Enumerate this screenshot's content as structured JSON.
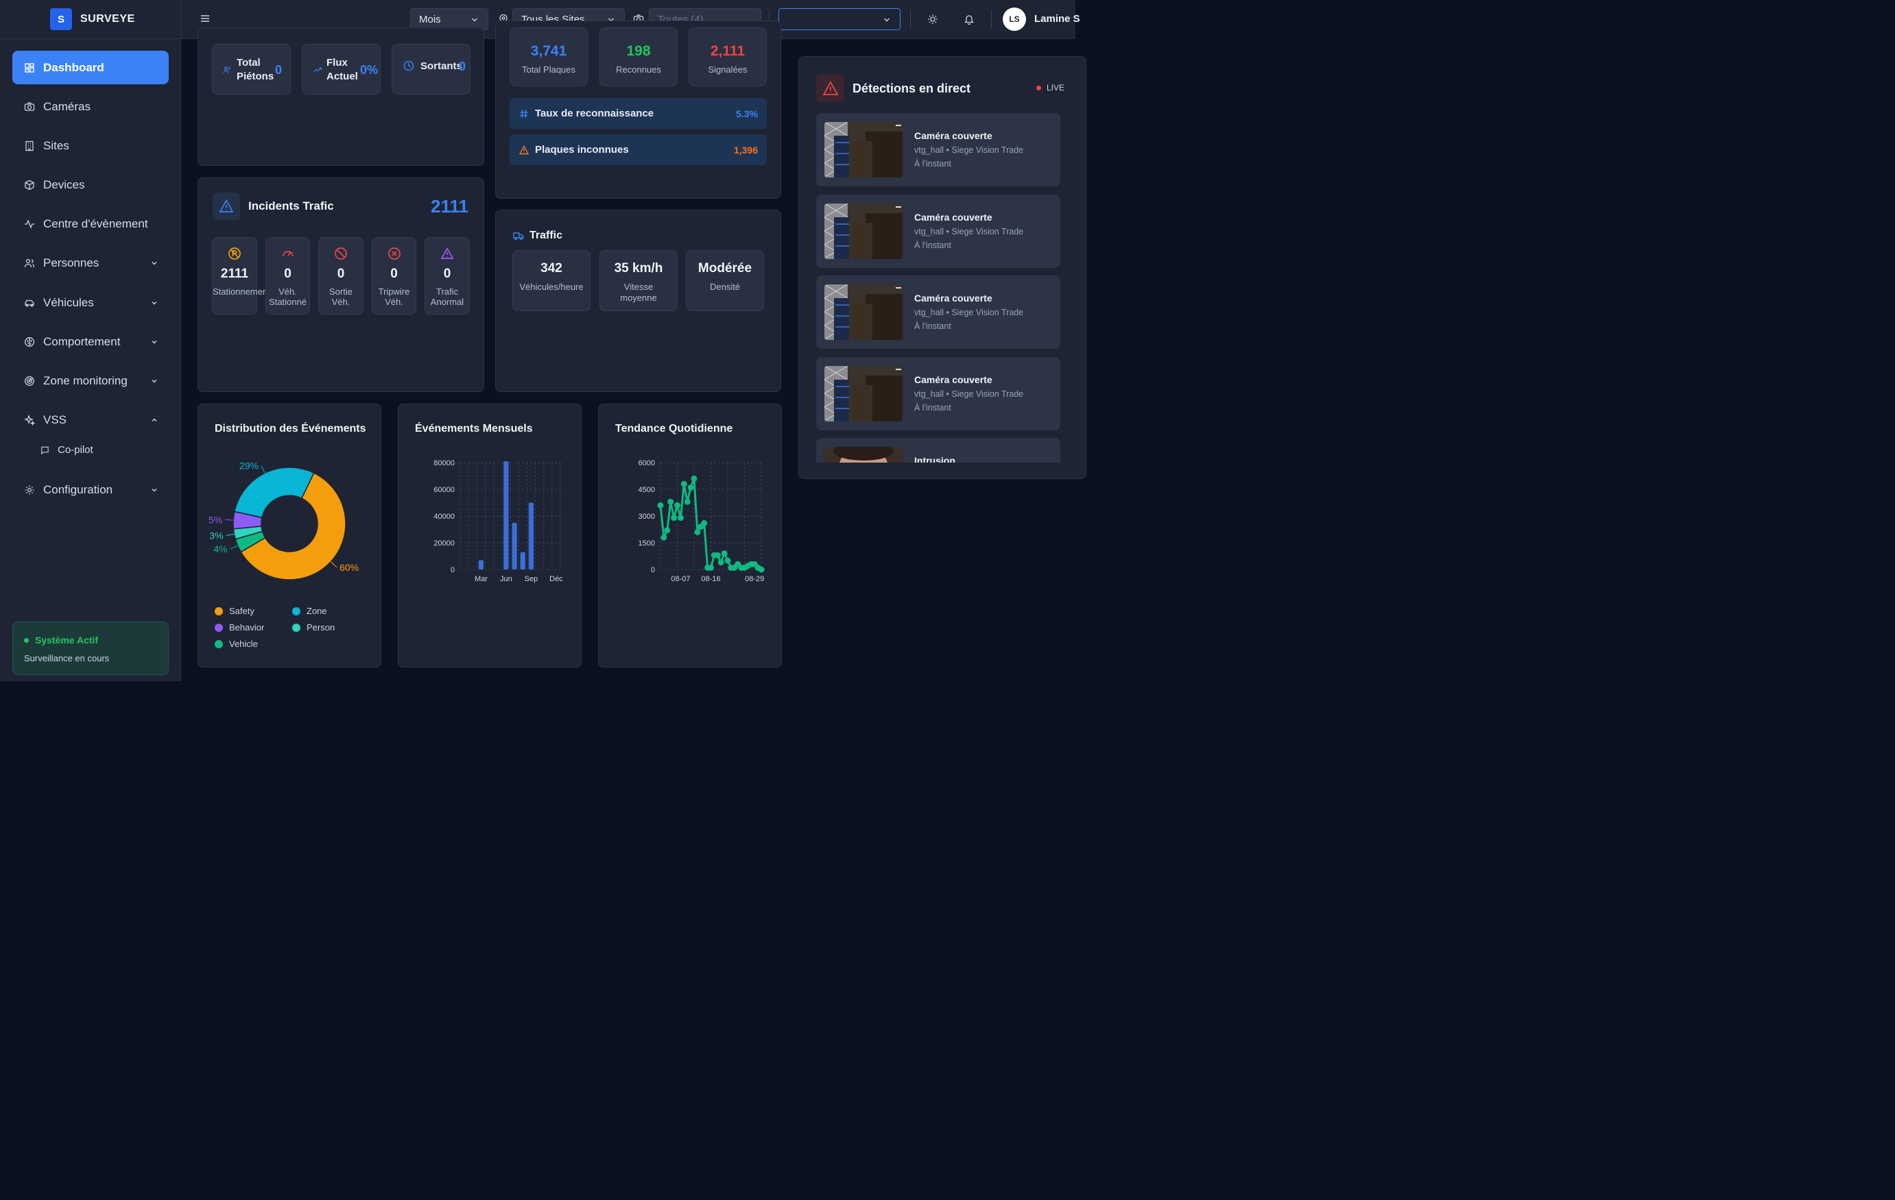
{
  "brand": {
    "logo_letter": "S",
    "name": "SURVEYE"
  },
  "sidebar": {
    "items": [
      {
        "label": "Dashboard",
        "icon": "dashboard-icon",
        "active": true
      },
      {
        "label": "Caméras",
        "icon": "camera-icon"
      },
      {
        "label": "Sites",
        "icon": "building-icon"
      },
      {
        "label": "Devices",
        "icon": "box-icon"
      },
      {
        "label": "Centre d'évènement",
        "icon": "activity-icon"
      },
      {
        "label": "Personnes",
        "icon": "users-icon",
        "chevron": "down"
      },
      {
        "label": "Véhicules",
        "icon": "car-icon",
        "chevron": "down"
      },
      {
        "label": "Comportement",
        "icon": "brain-icon",
        "chevron": "down"
      },
      {
        "label": "Zone monitoring",
        "icon": "radar-icon",
        "chevron": "down"
      },
      {
        "label": "VSS",
        "icon": "sparkles-icon",
        "chevron": "up"
      }
    ],
    "sub_item": {
      "label": "Co-pilot",
      "icon": "message-icon"
    },
    "config_item": {
      "label": "Configuration",
      "icon": "gear-icon",
      "chevron": "down"
    },
    "status": {
      "title": "Système Actif",
      "subtitle": "Surveillance en cours"
    }
  },
  "header": {
    "period": "Mois",
    "site": "Tous les Sites",
    "cameras_placeholder": "Toutes (4)",
    "extra_select": "",
    "user_initials": "LS",
    "user_name": "Lamine S"
  },
  "pedestrians": {
    "total_label_1": "Total",
    "total_label_2": "Piétons",
    "total_value": "0",
    "flux_label_1": "Flux",
    "flux_label_2": "Actuel",
    "flux_value": "0%",
    "exits_label": "Sortants",
    "exits_value": "0"
  },
  "plates": {
    "total": {
      "value": "3,741",
      "label": "Total Plaques",
      "color": "#3b82f6"
    },
    "recognized": {
      "value": "198",
      "label": "Reconnues",
      "color": "#22c55e"
    },
    "flagged": {
      "value": "2,111",
      "label": "Signalées",
      "color": "#ef4444"
    },
    "rate_label": "Taux de reconnaissance",
    "rate_value": "5.3%",
    "unknown_label": "Plaques inconnues",
    "unknown_value": "1,396"
  },
  "incidents": {
    "title": "Incidents Trafic",
    "total": "2111",
    "items": [
      {
        "value": "2111",
        "label1": "Stationnement",
        "label2": "",
        "color": "#f59e0b",
        "icon": "no-parking-icon"
      },
      {
        "value": "0",
        "label1": "Véh.",
        "label2": "Stationné",
        "color": "#ef4444",
        "icon": "gauge-icon"
      },
      {
        "value": "0",
        "label1": "Sortie",
        "label2": "Véh.",
        "color": "#ef4444",
        "icon": "ban-icon"
      },
      {
        "value": "0",
        "label1": "Tripwire",
        "label2": "Véh.",
        "color": "#ef4444",
        "icon": "x-circle-icon"
      },
      {
        "value": "0",
        "label1": "Trafic",
        "label2": "Anormal",
        "color": "#a855f7",
        "icon": "warning-icon"
      }
    ]
  },
  "traffic": {
    "title": "Traffic",
    "items": [
      {
        "value": "342",
        "label1": "Véhicules/heure",
        "label2": ""
      },
      {
        "value": "35 km/h",
        "label1": "Vitesse",
        "label2": "moyenne"
      },
      {
        "value": "Modérée",
        "label1": "Densité",
        "label2": ""
      }
    ]
  },
  "charts": {
    "distribution_title": "Distribution des Événements",
    "monthly_title": "Événements Mensuels",
    "daily_title": "Tendance Quotidienne"
  },
  "chart_data": [
    {
      "type": "pie",
      "title": "Distribution des Événements",
      "categories": [
        "Safety",
        "Zone",
        "Behavior",
        "Person",
        "Vehicle"
      ],
      "values": [
        60,
        29,
        5,
        3,
        4
      ],
      "visible_labels": [
        "60%",
        "29%",
        "5%",
        "3%",
        "4%"
      ],
      "colors": [
        "#f59e0b",
        "#06b6d4",
        "#8b5cf6",
        "#2dd4bf",
        "#10b981"
      ],
      "legend": "bottom"
    },
    {
      "type": "bar",
      "title": "Événements Mensuels",
      "categories": [
        "Jan",
        "Feb",
        "Mar",
        "Apr",
        "May",
        "Jun",
        "Jul",
        "Aug",
        "Sep",
        "Oct",
        "Nov",
        "Déc"
      ],
      "tick_labels": [
        "Mar",
        "Jun",
        "Sep",
        "Déc"
      ],
      "values": [
        0,
        0,
        7000,
        0,
        0,
        81000,
        35000,
        13000,
        50000,
        0,
        0,
        0
      ],
      "ylim": [
        0,
        80000
      ],
      "yticks": [
        0,
        20000,
        40000,
        60000,
        80000
      ],
      "color": "#3b6fd6",
      "grid": true
    },
    {
      "type": "line",
      "title": "Tendance Quotidienne",
      "x": [
        "08-01",
        "08-02",
        "08-03",
        "08-04",
        "08-05",
        "08-06",
        "08-07",
        "08-08",
        "08-09",
        "08-10",
        "08-11",
        "08-12",
        "08-13",
        "08-14",
        "08-15",
        "08-16",
        "08-17",
        "08-18",
        "08-19",
        "08-20",
        "08-21",
        "08-22",
        "08-23",
        "08-24",
        "08-25",
        "08-26",
        "08-27",
        "08-28",
        "08-29",
        "08-30",
        "08-31"
      ],
      "values": [
        3600,
        1800,
        2200,
        3800,
        2900,
        3600,
        2900,
        4800,
        3800,
        4600,
        5100,
        2100,
        2400,
        2600,
        100,
        100,
        800,
        800,
        400,
        900,
        500,
        100,
        100,
        300,
        100,
        100,
        200,
        300,
        300,
        100,
        0
      ],
      "xticks": [
        "08-07",
        "08-16",
        "08-29"
      ],
      "ylim": [
        0,
        6000
      ],
      "yticks": [
        0,
        1500,
        3000,
        4500,
        6000
      ],
      "color": "#10b981",
      "grid": true
    }
  ],
  "detections": {
    "title": "Détections en direct",
    "live_label": "LIVE",
    "items": [
      {
        "name": "Caméra couverte",
        "location": "vtg_hall • Siege Vision Trade",
        "time": "À l'instant",
        "thumb": "room"
      },
      {
        "name": "Caméra couverte",
        "location": "vtg_hall • Siege Vision Trade",
        "time": "À l'instant",
        "thumb": "room"
      },
      {
        "name": "Caméra couverte",
        "location": "vtg_hall • Siege Vision Trade",
        "time": "À l'instant",
        "thumb": "room"
      },
      {
        "name": "Caméra couverte",
        "location": "vtg_hall • Siege Vision Trade",
        "time": "À l'instant",
        "thumb": "room"
      },
      {
        "name": "Intrusion",
        "location": "",
        "time": "",
        "thumb": "face"
      }
    ]
  }
}
